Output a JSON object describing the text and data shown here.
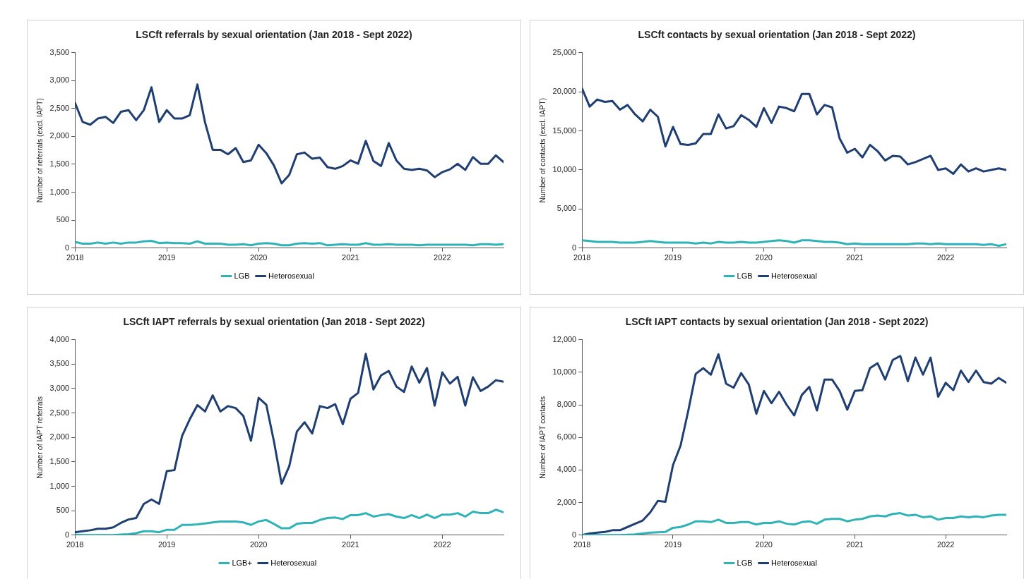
{
  "chart_data": [
    {
      "type": "line",
      "title": "LSCft referrals  by sexual orientation (Jan 2018 - Sept 2022)",
      "ylabel": "Number of referrals (excl. IAPT)",
      "legend": "bottom",
      "grid": false,
      "marker": "none",
      "x": [
        "2018-01",
        "2018-02",
        "2018-03",
        "2018-04",
        "2018-05",
        "2018-06",
        "2018-07",
        "2018-08",
        "2018-09",
        "2018-10",
        "2018-11",
        "2018-12",
        "2019-01",
        "2019-02",
        "2019-03",
        "2019-04",
        "2019-05",
        "2019-06",
        "2019-07",
        "2019-08",
        "2019-09",
        "2019-10",
        "2019-11",
        "2019-12",
        "2020-01",
        "2020-02",
        "2020-03",
        "2020-04",
        "2020-05",
        "2020-06",
        "2020-07",
        "2020-08",
        "2020-09",
        "2020-10",
        "2020-11",
        "2020-12",
        "2021-01",
        "2021-02",
        "2021-03",
        "2021-04",
        "2021-05",
        "2021-06",
        "2021-07",
        "2021-08",
        "2021-09",
        "2021-10",
        "2021-11",
        "2021-12",
        "2022-01",
        "2022-02",
        "2022-03",
        "2022-04",
        "2022-05",
        "2022-06",
        "2022-07",
        "2022-08",
        "2022-09"
      ],
      "xlim": [
        "2018-01",
        "2022-09"
      ],
      "xticks": [
        {
          "value": "2018-01",
          "label": "2018"
        },
        {
          "value": "2019-01",
          "label": "2019"
        },
        {
          "value": "2020-01",
          "label": "2020"
        },
        {
          "value": "2021-01",
          "label": "2021"
        },
        {
          "value": "2022-01",
          "label": "2022"
        }
      ],
      "ylim": [
        0,
        3500
      ],
      "yticks": [
        {
          "value": 0,
          "label": "0"
        },
        {
          "value": 500,
          "label": "500"
        },
        {
          "value": 1000,
          "label": "1,000"
        },
        {
          "value": 1500,
          "label": "1,500"
        },
        {
          "value": 2000,
          "label": "2,000"
        },
        {
          "value": 2500,
          "label": "2,500"
        },
        {
          "value": 3000,
          "label": "3,000"
        },
        {
          "value": 3500,
          "label": "3,500"
        }
      ],
      "series": [
        {
          "name": "LGB",
          "color": "#2fb3b8",
          "values": [
            110,
            80,
            80,
            100,
            80,
            100,
            80,
            100,
            100,
            120,
            130,
            90,
            100,
            90,
            90,
            80,
            120,
            80,
            80,
            80,
            60,
            60,
            70,
            50,
            80,
            90,
            80,
            50,
            50,
            80,
            90,
            80,
            90,
            50,
            60,
            70,
            60,
            60,
            90,
            60,
            60,
            70,
            60,
            60,
            60,
            50,
            60,
            60,
            60,
            60,
            60,
            60,
            50,
            70,
            70,
            60,
            70
          ]
        },
        {
          "name": "Heterosexual",
          "color": "#1f3e72",
          "values": [
            2600,
            2260,
            2210,
            2320,
            2350,
            2240,
            2440,
            2470,
            2290,
            2470,
            2880,
            2260,
            2470,
            2320,
            2320,
            2380,
            2930,
            2250,
            1760,
            1760,
            1680,
            1790,
            1540,
            1570,
            1850,
            1700,
            1480,
            1160,
            1310,
            1680,
            1710,
            1600,
            1620,
            1450,
            1420,
            1470,
            1570,
            1510,
            1920,
            1560,
            1470,
            1880,
            1570,
            1420,
            1400,
            1420,
            1390,
            1270,
            1360,
            1410,
            1510,
            1400,
            1630,
            1510,
            1510,
            1660,
            1540
          ]
        }
      ]
    },
    {
      "type": "line",
      "title": "LSCft contacts by sexual orientation (Jan 2018 - Sept 2022)",
      "ylabel": "Number of contacts (excl. IAPT)",
      "legend": "bottom",
      "grid": false,
      "marker": "none",
      "x": [
        "2018-01",
        "2018-02",
        "2018-03",
        "2018-04",
        "2018-05",
        "2018-06",
        "2018-07",
        "2018-08",
        "2018-09",
        "2018-10",
        "2018-11",
        "2018-12",
        "2019-01",
        "2019-02",
        "2019-03",
        "2019-04",
        "2019-05",
        "2019-06",
        "2019-07",
        "2019-08",
        "2019-09",
        "2019-10",
        "2019-11",
        "2019-12",
        "2020-01",
        "2020-02",
        "2020-03",
        "2020-04",
        "2020-05",
        "2020-06",
        "2020-07",
        "2020-08",
        "2020-09",
        "2020-10",
        "2020-11",
        "2020-12",
        "2021-01",
        "2021-02",
        "2021-03",
        "2021-04",
        "2021-05",
        "2021-06",
        "2021-07",
        "2021-08",
        "2021-09",
        "2021-10",
        "2021-11",
        "2021-12",
        "2022-01",
        "2022-02",
        "2022-03",
        "2022-04",
        "2022-05",
        "2022-06",
        "2022-07",
        "2022-08",
        "2022-09"
      ],
      "xlim": [
        "2018-01",
        "2022-09"
      ],
      "xticks": [
        {
          "value": "2018-01",
          "label": "2018"
        },
        {
          "value": "2019-01",
          "label": "2019"
        },
        {
          "value": "2020-01",
          "label": "2020"
        },
        {
          "value": "2021-01",
          "label": "2021"
        },
        {
          "value": "2022-01",
          "label": "2022"
        }
      ],
      "ylim": [
        0,
        25000
      ],
      "yticks": [
        {
          "value": 0,
          "label": "0"
        },
        {
          "value": 5000,
          "label": "5,000"
        },
        {
          "value": 10000,
          "label": "10,000"
        },
        {
          "value": 15000,
          "label": "15,000"
        },
        {
          "value": 20000,
          "label": "20,000"
        },
        {
          "value": 25000,
          "label": "25,000"
        }
      ],
      "series": [
        {
          "name": "LGB",
          "color": "#2fb3b8",
          "values": [
            1000,
            900,
            800,
            800,
            800,
            700,
            700,
            700,
            800,
            900,
            800,
            700,
            700,
            700,
            700,
            600,
            700,
            600,
            800,
            700,
            700,
            800,
            700,
            700,
            800,
            900,
            1000,
            900,
            700,
            1000,
            1000,
            900,
            800,
            800,
            700,
            500,
            600,
            500,
            500,
            500,
            500,
            500,
            500,
            500,
            600,
            600,
            500,
            600,
            500,
            500,
            500,
            500,
            500,
            400,
            500,
            300,
            500
          ]
        },
        {
          "name": "Heterosexual",
          "color": "#1f3e72",
          "values": [
            20400,
            18100,
            19000,
            18700,
            18800,
            17700,
            18300,
            17100,
            16200,
            17700,
            16800,
            13000,
            15500,
            13300,
            13200,
            13400,
            14600,
            14600,
            17100,
            15300,
            15600,
            17000,
            16400,
            15500,
            17900,
            16000,
            18100,
            17900,
            17500,
            19700,
            19700,
            17100,
            18300,
            18000,
            14000,
            12200,
            12700,
            11600,
            13200,
            12400,
            11200,
            11800,
            11700,
            10700,
            11000,
            11400,
            11800,
            10000,
            10200,
            9500,
            10700,
            9800,
            10200,
            9800,
            10000,
            10200,
            10000
          ]
        }
      ]
    },
    {
      "type": "line",
      "title": "LSCft IAPT referrals by sexual orientation (Jan 2018 - Sept 2022)",
      "ylabel": "Number of IAPT referrals",
      "legend": "bottom",
      "grid": false,
      "marker": "none",
      "x": [
        "2018-01",
        "2018-02",
        "2018-03",
        "2018-04",
        "2018-05",
        "2018-06",
        "2018-07",
        "2018-08",
        "2018-09",
        "2018-10",
        "2018-11",
        "2018-12",
        "2019-01",
        "2019-02",
        "2019-03",
        "2019-04",
        "2019-05",
        "2019-06",
        "2019-07",
        "2019-08",
        "2019-09",
        "2019-10",
        "2019-11",
        "2019-12",
        "2020-01",
        "2020-02",
        "2020-03",
        "2020-04",
        "2020-05",
        "2020-06",
        "2020-07",
        "2020-08",
        "2020-09",
        "2020-10",
        "2020-11",
        "2020-12",
        "2021-01",
        "2021-02",
        "2021-03",
        "2021-04",
        "2021-05",
        "2021-06",
        "2021-07",
        "2021-08",
        "2021-09",
        "2021-10",
        "2021-11",
        "2021-12",
        "2022-01",
        "2022-02",
        "2022-03",
        "2022-04",
        "2022-05",
        "2022-06",
        "2022-07",
        "2022-08",
        "2022-09"
      ],
      "xlim": [
        "2018-01",
        "2022-09"
      ],
      "xticks": [
        {
          "value": "2018-01",
          "label": "2018"
        },
        {
          "value": "2019-01",
          "label": "2019"
        },
        {
          "value": "2020-01",
          "label": "2020"
        },
        {
          "value": "2021-01",
          "label": "2021"
        },
        {
          "value": "2022-01",
          "label": "2022"
        }
      ],
      "ylim": [
        0,
        4000
      ],
      "yticks": [
        {
          "value": 0,
          "label": "0"
        },
        {
          "value": 500,
          "label": "500"
        },
        {
          "value": 1000,
          "label": "1,000"
        },
        {
          "value": 1500,
          "label": "1,500"
        },
        {
          "value": 2000,
          "label": "2,000"
        },
        {
          "value": 2500,
          "label": "2,500"
        },
        {
          "value": 3000,
          "label": "3,000"
        },
        {
          "value": 3500,
          "label": "3,500"
        },
        {
          "value": 4000,
          "label": "4,000"
        }
      ],
      "series": [
        {
          "name": "LGB+",
          "color": "#2fb3b8",
          "values": [
            10,
            0,
            0,
            0,
            0,
            0,
            10,
            20,
            40,
            80,
            80,
            60,
            110,
            110,
            210,
            210,
            220,
            240,
            260,
            280,
            280,
            280,
            260,
            210,
            280,
            310,
            230,
            140,
            140,
            230,
            250,
            250,
            310,
            350,
            360,
            330,
            410,
            410,
            450,
            380,
            410,
            430,
            380,
            350,
            410,
            350,
            420,
            350,
            420,
            420,
            450,
            380,
            480,
            450,
            450,
            520,
            470
          ]
        },
        {
          "name": "Heterosexual",
          "color": "#1f3e72",
          "values": [
            60,
            80,
            100,
            130,
            130,
            160,
            250,
            320,
            350,
            640,
            730,
            640,
            1310,
            1330,
            2030,
            2370,
            2660,
            2530,
            2860,
            2530,
            2640,
            2600,
            2440,
            1930,
            2810,
            2670,
            1920,
            1050,
            1410,
            2120,
            2310,
            2080,
            2640,
            2600,
            2680,
            2270,
            2790,
            2910,
            3710,
            2980,
            3270,
            3360,
            3040,
            2930,
            3450,
            3120,
            3420,
            2650,
            3330,
            3100,
            3240,
            2650,
            3230,
            2950,
            3040,
            3170,
            3140
          ]
        }
      ]
    },
    {
      "type": "line",
      "title": "LSCft IAPT contacts by sexual orientation (Jan 2018 - Sept 2022)",
      "ylabel": "Number of IAPT contacts",
      "legend": "bottom",
      "grid": false,
      "marker": "none",
      "x": [
        "2018-01",
        "2018-02",
        "2018-03",
        "2018-04",
        "2018-05",
        "2018-06",
        "2018-07",
        "2018-08",
        "2018-09",
        "2018-10",
        "2018-11",
        "2018-12",
        "2019-01",
        "2019-02",
        "2019-03",
        "2019-04",
        "2019-05",
        "2019-06",
        "2019-07",
        "2019-08",
        "2019-09",
        "2019-10",
        "2019-11",
        "2019-12",
        "2020-01",
        "2020-02",
        "2020-03",
        "2020-04",
        "2020-05",
        "2020-06",
        "2020-07",
        "2020-08",
        "2020-09",
        "2020-10",
        "2020-11",
        "2020-12",
        "2021-01",
        "2021-02",
        "2021-03",
        "2021-04",
        "2021-05",
        "2021-06",
        "2021-07",
        "2021-08",
        "2021-09",
        "2021-10",
        "2021-11",
        "2021-12",
        "2022-01",
        "2022-02",
        "2022-03",
        "2022-04",
        "2022-05",
        "2022-06",
        "2022-07",
        "2022-08",
        "2022-09"
      ],
      "xlim": [
        "2018-01",
        "2022-09"
      ],
      "xticks": [
        {
          "value": "2018-01",
          "label": "2018"
        },
        {
          "value": "2019-01",
          "label": "2019"
        },
        {
          "value": "2020-01",
          "label": "2020"
        },
        {
          "value": "2021-01",
          "label": "2021"
        },
        {
          "value": "2022-01",
          "label": "2022"
        }
      ],
      "ylim": [
        0,
        12000
      ],
      "yticks": [
        {
          "value": 0,
          "label": "0"
        },
        {
          "value": 2000,
          "label": "2,000"
        },
        {
          "value": 4000,
          "label": "4,000"
        },
        {
          "value": 6000,
          "label": "6,000"
        },
        {
          "value": 8000,
          "label": "8,000"
        },
        {
          "value": 10000,
          "label": "10,000"
        },
        {
          "value": 12000,
          "label": "12,000"
        }
      ],
      "series": [
        {
          "name": "LGB",
          "color": "#2fb3b8",
          "values": [
            0,
            0,
            0,
            0,
            0,
            0,
            20,
            50,
            100,
            150,
            180,
            200,
            450,
            500,
            650,
            850,
            850,
            800,
            950,
            750,
            750,
            800,
            800,
            650,
            750,
            750,
            850,
            700,
            650,
            800,
            850,
            700,
            950,
            1000,
            1000,
            850,
            950,
            1000,
            1150,
            1200,
            1150,
            1300,
            1350,
            1200,
            1250,
            1100,
            1150,
            950,
            1050,
            1050,
            1150,
            1100,
            1150,
            1100,
            1200,
            1250,
            1250
          ]
        },
        {
          "name": "Heterosexual",
          "color": "#1f3e72",
          "values": [
            0,
            100,
            150,
            200,
            300,
            300,
            500,
            700,
            900,
            1400,
            2100,
            2050,
            4300,
            5500,
            7600,
            9900,
            10250,
            9850,
            11100,
            9300,
            9050,
            9950,
            9250,
            7450,
            8850,
            8100,
            8800,
            8000,
            7350,
            8600,
            9100,
            7650,
            9550,
            9550,
            8850,
            7700,
            8850,
            8900,
            10250,
            10550,
            9550,
            10750,
            11000,
            9450,
            10900,
            9850,
            10900,
            8500,
            9350,
            8900,
            10100,
            9400,
            10100,
            9400,
            9300,
            9650,
            9350
          ]
        }
      ]
    }
  ]
}
